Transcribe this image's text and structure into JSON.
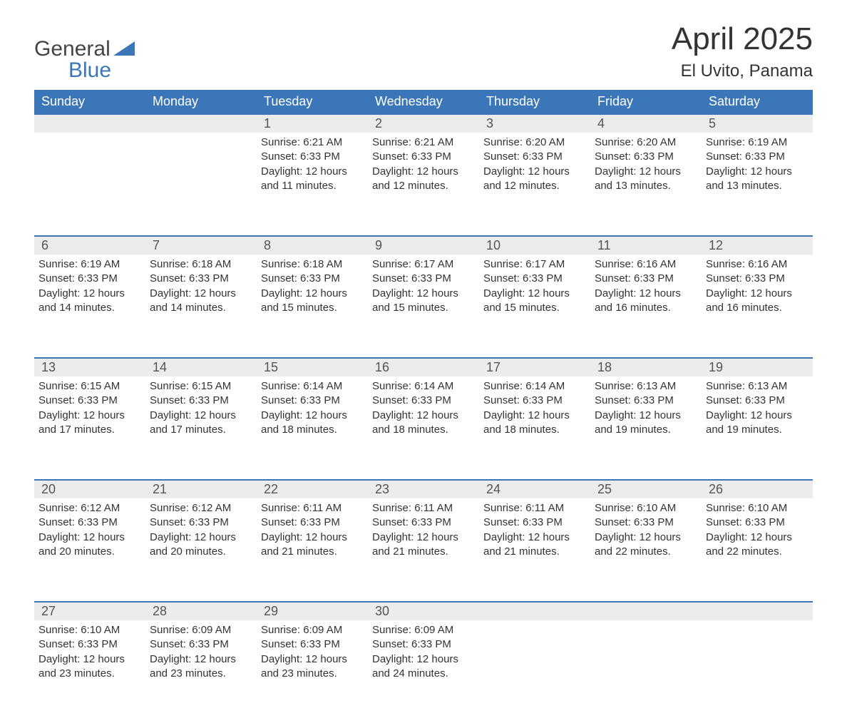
{
  "logo": {
    "line1": "General",
    "line2": "Blue"
  },
  "title": "April 2025",
  "location": "El Uvito, Panama",
  "colors": {
    "header_bg": "#3a76b8",
    "header_text": "#ffffff",
    "daynum_bg": "#ececec",
    "daynum_border": "#3a76b8",
    "text": "#333333",
    "logo_gray": "#444444",
    "logo_blue": "#3a76b8",
    "background": "#ffffff"
  },
  "fonts": {
    "title_size_pt": 33,
    "location_size_pt": 18,
    "header_size_pt": 14,
    "daynum_size_pt": 14,
    "body_size_pt": 11
  },
  "weekdays": [
    "Sunday",
    "Monday",
    "Tuesday",
    "Wednesday",
    "Thursday",
    "Friday",
    "Saturday"
  ],
  "weeks": [
    [
      null,
      null,
      {
        "n": "1",
        "sunrise": "Sunrise: 6:21 AM",
        "sunset": "Sunset: 6:33 PM",
        "d1": "Daylight: 12 hours",
        "d2": "and 11 minutes."
      },
      {
        "n": "2",
        "sunrise": "Sunrise: 6:21 AM",
        "sunset": "Sunset: 6:33 PM",
        "d1": "Daylight: 12 hours",
        "d2": "and 12 minutes."
      },
      {
        "n": "3",
        "sunrise": "Sunrise: 6:20 AM",
        "sunset": "Sunset: 6:33 PM",
        "d1": "Daylight: 12 hours",
        "d2": "and 12 minutes."
      },
      {
        "n": "4",
        "sunrise": "Sunrise: 6:20 AM",
        "sunset": "Sunset: 6:33 PM",
        "d1": "Daylight: 12 hours",
        "d2": "and 13 minutes."
      },
      {
        "n": "5",
        "sunrise": "Sunrise: 6:19 AM",
        "sunset": "Sunset: 6:33 PM",
        "d1": "Daylight: 12 hours",
        "d2": "and 13 minutes."
      }
    ],
    [
      {
        "n": "6",
        "sunrise": "Sunrise: 6:19 AM",
        "sunset": "Sunset: 6:33 PM",
        "d1": "Daylight: 12 hours",
        "d2": "and 14 minutes."
      },
      {
        "n": "7",
        "sunrise": "Sunrise: 6:18 AM",
        "sunset": "Sunset: 6:33 PM",
        "d1": "Daylight: 12 hours",
        "d2": "and 14 minutes."
      },
      {
        "n": "8",
        "sunrise": "Sunrise: 6:18 AM",
        "sunset": "Sunset: 6:33 PM",
        "d1": "Daylight: 12 hours",
        "d2": "and 15 minutes."
      },
      {
        "n": "9",
        "sunrise": "Sunrise: 6:17 AM",
        "sunset": "Sunset: 6:33 PM",
        "d1": "Daylight: 12 hours",
        "d2": "and 15 minutes."
      },
      {
        "n": "10",
        "sunrise": "Sunrise: 6:17 AM",
        "sunset": "Sunset: 6:33 PM",
        "d1": "Daylight: 12 hours",
        "d2": "and 15 minutes."
      },
      {
        "n": "11",
        "sunrise": "Sunrise: 6:16 AM",
        "sunset": "Sunset: 6:33 PM",
        "d1": "Daylight: 12 hours",
        "d2": "and 16 minutes."
      },
      {
        "n": "12",
        "sunrise": "Sunrise: 6:16 AM",
        "sunset": "Sunset: 6:33 PM",
        "d1": "Daylight: 12 hours",
        "d2": "and 16 minutes."
      }
    ],
    [
      {
        "n": "13",
        "sunrise": "Sunrise: 6:15 AM",
        "sunset": "Sunset: 6:33 PM",
        "d1": "Daylight: 12 hours",
        "d2": "and 17 minutes."
      },
      {
        "n": "14",
        "sunrise": "Sunrise: 6:15 AM",
        "sunset": "Sunset: 6:33 PM",
        "d1": "Daylight: 12 hours",
        "d2": "and 17 minutes."
      },
      {
        "n": "15",
        "sunrise": "Sunrise: 6:14 AM",
        "sunset": "Sunset: 6:33 PM",
        "d1": "Daylight: 12 hours",
        "d2": "and 18 minutes."
      },
      {
        "n": "16",
        "sunrise": "Sunrise: 6:14 AM",
        "sunset": "Sunset: 6:33 PM",
        "d1": "Daylight: 12 hours",
        "d2": "and 18 minutes."
      },
      {
        "n": "17",
        "sunrise": "Sunrise: 6:14 AM",
        "sunset": "Sunset: 6:33 PM",
        "d1": "Daylight: 12 hours",
        "d2": "and 18 minutes."
      },
      {
        "n": "18",
        "sunrise": "Sunrise: 6:13 AM",
        "sunset": "Sunset: 6:33 PM",
        "d1": "Daylight: 12 hours",
        "d2": "and 19 minutes."
      },
      {
        "n": "19",
        "sunrise": "Sunrise: 6:13 AM",
        "sunset": "Sunset: 6:33 PM",
        "d1": "Daylight: 12 hours",
        "d2": "and 19 minutes."
      }
    ],
    [
      {
        "n": "20",
        "sunrise": "Sunrise: 6:12 AM",
        "sunset": "Sunset: 6:33 PM",
        "d1": "Daylight: 12 hours",
        "d2": "and 20 minutes."
      },
      {
        "n": "21",
        "sunrise": "Sunrise: 6:12 AM",
        "sunset": "Sunset: 6:33 PM",
        "d1": "Daylight: 12 hours",
        "d2": "and 20 minutes."
      },
      {
        "n": "22",
        "sunrise": "Sunrise: 6:11 AM",
        "sunset": "Sunset: 6:33 PM",
        "d1": "Daylight: 12 hours",
        "d2": "and 21 minutes."
      },
      {
        "n": "23",
        "sunrise": "Sunrise: 6:11 AM",
        "sunset": "Sunset: 6:33 PM",
        "d1": "Daylight: 12 hours",
        "d2": "and 21 minutes."
      },
      {
        "n": "24",
        "sunrise": "Sunrise: 6:11 AM",
        "sunset": "Sunset: 6:33 PM",
        "d1": "Daylight: 12 hours",
        "d2": "and 21 minutes."
      },
      {
        "n": "25",
        "sunrise": "Sunrise: 6:10 AM",
        "sunset": "Sunset: 6:33 PM",
        "d1": "Daylight: 12 hours",
        "d2": "and 22 minutes."
      },
      {
        "n": "26",
        "sunrise": "Sunrise: 6:10 AM",
        "sunset": "Sunset: 6:33 PM",
        "d1": "Daylight: 12 hours",
        "d2": "and 22 minutes."
      }
    ],
    [
      {
        "n": "27",
        "sunrise": "Sunrise: 6:10 AM",
        "sunset": "Sunset: 6:33 PM",
        "d1": "Daylight: 12 hours",
        "d2": "and 23 minutes."
      },
      {
        "n": "28",
        "sunrise": "Sunrise: 6:09 AM",
        "sunset": "Sunset: 6:33 PM",
        "d1": "Daylight: 12 hours",
        "d2": "and 23 minutes."
      },
      {
        "n": "29",
        "sunrise": "Sunrise: 6:09 AM",
        "sunset": "Sunset: 6:33 PM",
        "d1": "Daylight: 12 hours",
        "d2": "and 23 minutes."
      },
      {
        "n": "30",
        "sunrise": "Sunrise: 6:09 AM",
        "sunset": "Sunset: 6:33 PM",
        "d1": "Daylight: 12 hours",
        "d2": "and 24 minutes."
      },
      null,
      null,
      null
    ]
  ]
}
